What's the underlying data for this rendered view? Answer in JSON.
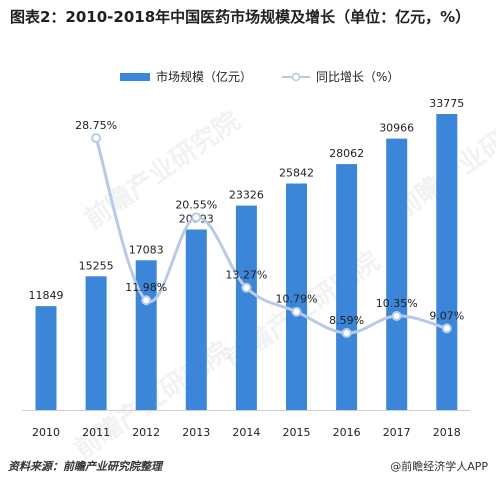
{
  "chart_data": {
    "type": "bar",
    "title": "图表2：2010-2018年中国医药市场规模及增长（单位：亿元，%）",
    "categories": [
      "2010",
      "2011",
      "2012",
      "2013",
      "2014",
      "2015",
      "2016",
      "2017",
      "2018"
    ],
    "series": [
      {
        "name": "市场规模（亿元）",
        "type": "bar",
        "axis": "left",
        "values": [
          11849,
          15255,
          17083,
          20593,
          23326,
          25842,
          28062,
          30966,
          33775
        ],
        "labels": [
          "11849",
          "15255",
          "17083",
          "20593",
          "23326",
          "25842",
          "28062",
          "30966",
          "33775"
        ]
      },
      {
        "name": "同比增长（%）",
        "type": "line",
        "axis": "right",
        "smooth": true,
        "values": [
          null,
          28.75,
          11.98,
          20.55,
          13.27,
          10.79,
          8.59,
          10.35,
          9.07
        ],
        "labels": [
          "",
          "28.75%",
          "11.98%",
          "20.55%",
          "13.27%",
          "10.79%",
          "8.59%",
          "10.35%",
          "9.07%"
        ]
      }
    ],
    "ylim_left": [
      0,
      36000
    ],
    "ylim_right": [
      0,
      40
    ],
    "grid": false,
    "legend": "top"
  },
  "colors": {
    "bar": "#3b86d8",
    "line": "#b8cbe6",
    "marker_fill": "#ffffff",
    "marker_stroke": "#b8cbe6"
  },
  "footer": {
    "source": "资料来源：前瞻产业研究院整理",
    "brand": "@前瞻经济学人APP"
  },
  "watermark_text": "前瞻产业研究院"
}
